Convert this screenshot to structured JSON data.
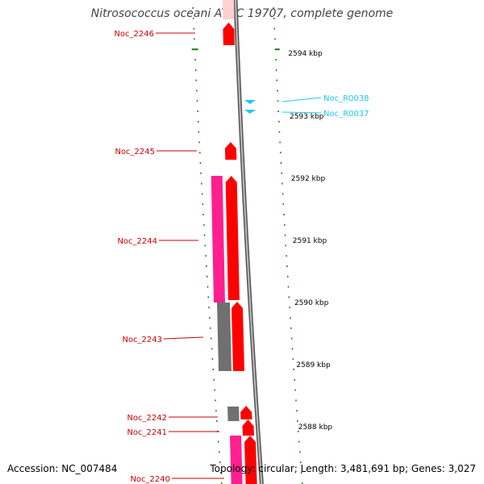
{
  "title": "Nitrosococcus oceani ATCC 19707, complete genome",
  "footer": {
    "accession": "Accession: NC_007484",
    "summary": "Topology: circular; Length: 3,481,691 bp; Genes: 3,027"
  },
  "colors": {
    "cds_red": "#ff0000",
    "cds_pink": "#ff1f8f",
    "cds_gray": "#707070",
    "trna_cyan": "#1ec8ef",
    "label_red": "#cc0000",
    "label_cyan": "#1ec8ef",
    "tick_green": "#1a7a1a",
    "backbone_gray": "#8a8a8a"
  },
  "scale_labels": [
    "2594 kbp",
    "2593 kbp",
    "2592 kbp",
    "2591 kbp",
    "2590 kbp",
    "2589 kbp",
    "2588 kbp"
  ],
  "gene_labels": [
    {
      "name": "Noc_2246",
      "color": "red"
    },
    {
      "name": "Noc_2245",
      "color": "red"
    },
    {
      "name": "Noc_2244",
      "color": "red"
    },
    {
      "name": "Noc_2243",
      "color": "red"
    },
    {
      "name": "Noc_2242",
      "color": "red"
    },
    {
      "name": "Noc_2241",
      "color": "red"
    },
    {
      "name": "Noc_2240",
      "color": "red"
    },
    {
      "name": "Noc_R0038",
      "color": "cyan"
    },
    {
      "name": "Noc_R0037",
      "color": "cyan"
    }
  ]
}
